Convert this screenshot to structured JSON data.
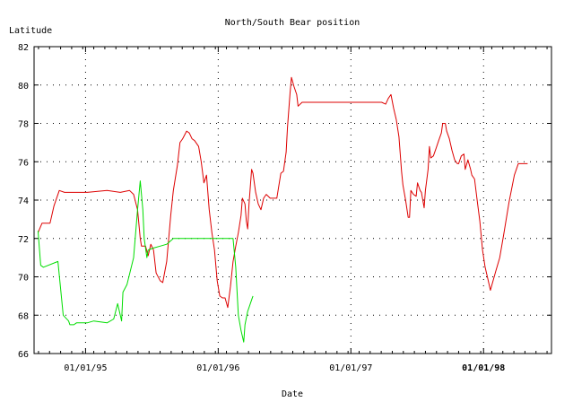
{
  "chart_data": {
    "type": "line",
    "title": "North/South Bear position",
    "xlabel": "Date",
    "ylabel": "Latitude",
    "x_ticks": [
      {
        "label": "01/01/95",
        "value": 0.188,
        "bold": false
      },
      {
        "label": "01/01/96",
        "value": 1.188,
        "bold": false
      },
      {
        "label": "01/01/97",
        "value": 2.188,
        "bold": false
      },
      {
        "label": "01/01/98",
        "value": 3.188,
        "bold": true
      }
    ],
    "y_ticks": [
      66,
      68,
      70,
      72,
      74,
      76,
      78,
      80,
      82
    ],
    "xlim": [
      -0.2,
      3.7
    ],
    "ylim": [
      66,
      82
    ],
    "grid": true,
    "series": [
      {
        "color": "#dd0000",
        "points": [
          [
            -0.17,
            72.3
          ],
          [
            -0.14,
            72.8
          ],
          [
            -0.12,
            72.8
          ],
          [
            -0.08,
            72.8
          ],
          [
            -0.05,
            73.7
          ],
          [
            -0.01,
            74.5
          ],
          [
            0.03,
            74.4
          ],
          [
            0.07,
            74.4
          ],
          [
            0.2,
            74.4
          ],
          [
            0.35,
            74.5
          ],
          [
            0.45,
            74.4
          ],
          [
            0.52,
            74.5
          ],
          [
            0.55,
            74.3
          ],
          [
            0.58,
            73.5
          ],
          [
            0.6,
            72.0
          ],
          [
            0.61,
            71.6
          ],
          [
            0.64,
            71.6
          ],
          [
            0.66,
            71.1
          ],
          [
            0.68,
            71.7
          ],
          [
            0.7,
            71.4
          ],
          [
            0.72,
            70.2
          ],
          [
            0.75,
            69.8
          ],
          [
            0.77,
            69.7
          ],
          [
            0.8,
            70.8
          ],
          [
            0.83,
            73.2
          ],
          [
            0.85,
            74.5
          ],
          [
            0.88,
            75.8
          ],
          [
            0.9,
            77.0
          ],
          [
            0.92,
            77.2
          ],
          [
            0.95,
            77.6
          ],
          [
            0.97,
            77.5
          ],
          [
            0.99,
            77.2
          ],
          [
            1.01,
            77.1
          ],
          [
            1.04,
            76.8
          ],
          [
            1.06,
            76.0
          ],
          [
            1.08,
            74.9
          ],
          [
            1.1,
            75.3
          ],
          [
            1.12,
            73.5
          ],
          [
            1.14,
            72.3
          ],
          [
            1.16,
            71.4
          ],
          [
            1.18,
            69.8
          ],
          [
            1.2,
            69.0
          ],
          [
            1.22,
            68.9
          ],
          [
            1.24,
            68.9
          ],
          [
            1.26,
            68.4
          ],
          [
            1.28,
            69.5
          ],
          [
            1.3,
            70.8
          ],
          [
            1.32,
            71.6
          ],
          [
            1.34,
            72.3
          ],
          [
            1.36,
            73.2
          ],
          [
            1.37,
            74.1
          ],
          [
            1.39,
            73.8
          ],
          [
            1.4,
            72.9
          ],
          [
            1.41,
            72.5
          ],
          [
            1.42,
            73.8
          ],
          [
            1.44,
            75.6
          ],
          [
            1.45,
            75.4
          ],
          [
            1.47,
            74.4
          ],
          [
            1.49,
            73.8
          ],
          [
            1.51,
            73.5
          ],
          [
            1.53,
            74.1
          ],
          [
            1.55,
            74.3
          ],
          [
            1.58,
            74.1
          ],
          [
            1.63,
            74.1
          ],
          [
            1.66,
            75.4
          ],
          [
            1.68,
            75.5
          ],
          [
            1.7,
            76.5
          ],
          [
            1.71,
            77.8
          ],
          [
            1.73,
            79.6
          ],
          [
            1.74,
            80.4
          ],
          [
            1.76,
            79.9
          ],
          [
            1.78,
            79.5
          ],
          [
            1.79,
            78.9
          ],
          [
            1.82,
            79.1
          ],
          [
            1.86,
            79.1
          ],
          [
            2.0,
            79.1
          ],
          [
            2.2,
            79.1
          ],
          [
            2.38,
            79.1
          ],
          [
            2.42,
            79.1
          ],
          [
            2.45,
            79.0
          ],
          [
            2.47,
            79.3
          ],
          [
            2.49,
            79.5
          ],
          [
            2.51,
            78.8
          ],
          [
            2.53,
            78.2
          ],
          [
            2.55,
            77.3
          ],
          [
            2.57,
            75.5
          ],
          [
            2.58,
            74.8
          ],
          [
            2.6,
            74.0
          ],
          [
            2.62,
            73.1
          ],
          [
            2.63,
            73.1
          ],
          [
            2.64,
            74.5
          ],
          [
            2.66,
            74.3
          ],
          [
            2.68,
            74.2
          ],
          [
            2.69,
            74.9
          ],
          [
            2.71,
            74.5
          ],
          [
            2.72,
            74.4
          ],
          [
            2.74,
            73.6
          ],
          [
            2.75,
            74.5
          ],
          [
            2.77,
            75.6
          ],
          [
            2.78,
            76.8
          ],
          [
            2.79,
            76.2
          ],
          [
            2.81,
            76.3
          ],
          [
            2.83,
            76.7
          ],
          [
            2.85,
            77.1
          ],
          [
            2.87,
            77.5
          ],
          [
            2.88,
            78.0
          ],
          [
            2.9,
            78.0
          ],
          [
            2.91,
            77.6
          ],
          [
            2.93,
            77.2
          ],
          [
            2.95,
            76.6
          ],
          [
            2.97,
            76.1
          ],
          [
            2.99,
            75.9
          ],
          [
            3.0,
            75.9
          ],
          [
            3.02,
            76.3
          ],
          [
            3.04,
            76.4
          ],
          [
            3.05,
            75.6
          ],
          [
            3.07,
            76.1
          ],
          [
            3.09,
            75.6
          ],
          [
            3.1,
            75.3
          ],
          [
            3.12,
            75.1
          ],
          [
            3.14,
            74.0
          ],
          [
            3.16,
            72.9
          ],
          [
            3.18,
            71.4
          ],
          [
            3.2,
            70.5
          ],
          [
            3.22,
            69.9
          ],
          [
            3.24,
            69.3
          ],
          [
            3.26,
            69.8
          ],
          [
            3.28,
            70.3
          ],
          [
            3.31,
            71.0
          ],
          [
            3.34,
            72.2
          ],
          [
            3.38,
            73.9
          ],
          [
            3.42,
            75.3
          ],
          [
            3.45,
            75.9
          ],
          [
            3.5,
            75.9
          ],
          [
            3.52,
            75.9
          ]
        ]
      },
      {
        "color": "#00dd00",
        "points": [
          [
            -0.17,
            72.4
          ],
          [
            -0.15,
            70.6
          ],
          [
            -0.13,
            70.5
          ],
          [
            -0.02,
            70.8
          ],
          [
            0.02,
            68.0
          ],
          [
            0.06,
            67.7
          ],
          [
            0.07,
            67.5
          ],
          [
            0.1,
            67.5
          ],
          [
            0.12,
            67.6
          ],
          [
            0.2,
            67.6
          ],
          [
            0.25,
            67.7
          ],
          [
            0.35,
            67.6
          ],
          [
            0.4,
            67.8
          ],
          [
            0.43,
            68.6
          ],
          [
            0.46,
            67.7
          ],
          [
            0.47,
            69.2
          ],
          [
            0.5,
            69.6
          ],
          [
            0.55,
            71.0
          ],
          [
            0.58,
            73.5
          ],
          [
            0.6,
            75.0
          ],
          [
            0.62,
            73.5
          ],
          [
            0.63,
            72.0
          ],
          [
            0.65,
            71.0
          ],
          [
            0.66,
            71.4
          ],
          [
            0.7,
            71.5
          ],
          [
            0.75,
            71.6
          ],
          [
            0.8,
            71.7
          ],
          [
            0.85,
            72.0
          ],
          [
            1.0,
            72.0
          ],
          [
            1.1,
            72.0
          ],
          [
            1.3,
            72.0
          ],
          [
            1.32,
            70.5
          ],
          [
            1.34,
            68.0
          ],
          [
            1.36,
            67.2
          ],
          [
            1.38,
            66.6
          ],
          [
            1.39,
            67.5
          ],
          [
            1.41,
            68.2
          ],
          [
            1.42,
            68.4
          ],
          [
            1.44,
            68.8
          ],
          [
            1.45,
            69.0
          ]
        ]
      }
    ]
  }
}
